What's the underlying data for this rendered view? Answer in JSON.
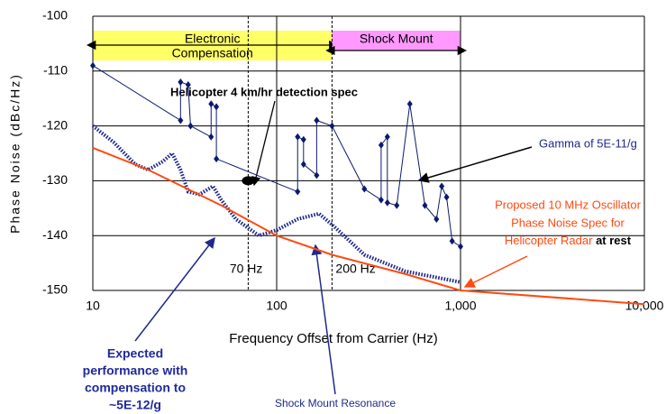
{
  "chart_data": {
    "type": "line",
    "y_axis_label": "Phase Noise (dBc/Hz)",
    "x_axis_label": "Frequency Offset from Carrier (Hz)",
    "log_x": true,
    "grid": true,
    "xlim": [
      10,
      10000
    ],
    "ylim": [
      -150,
      -100
    ],
    "xticks": [
      10,
      100,
      {
        "value": 1000,
        "label": "1,000"
      },
      {
        "value": 10000,
        "label": "10,000"
      }
    ],
    "yticks": [
      -100,
      -110,
      -120,
      -130,
      -140,
      -150
    ],
    "series": [
      {
        "color": "#0b1a6e",
        "marker": "diamond",
        "x": [
          10,
          30,
          30,
          33,
          34,
          44,
          44,
          47,
          47,
          130,
          130,
          140,
          140,
          165,
          165,
          200,
          300,
          370,
          370,
          400,
          400,
          450,
          530,
          640,
          740,
          790,
          840,
          900,
          1000
        ],
        "values": [
          -109,
          -119,
          -112,
          -112.5,
          -120,
          -122,
          -116,
          -116.5,
          -126,
          -132,
          -122,
          -122.5,
          -127,
          -129,
          -119,
          -120,
          -131.5,
          -133.5,
          -123.5,
          -122,
          -134,
          -134.5,
          -116,
          -134.5,
          -137,
          -131,
          -133,
          -141,
          -142
        ]
      },
      {
        "color": "#1f2a8a",
        "dash": "dotted",
        "x": [
          10,
          13,
          17,
          20,
          24,
          27,
          30,
          33,
          38,
          45,
          50,
          60,
          80,
          100,
          130,
          170,
          200,
          300,
          500,
          1000
        ],
        "values": [
          -120,
          -123,
          -127,
          -128,
          -126.5,
          -125,
          -128,
          -132,
          -132.5,
          -131,
          -133.5,
          -137,
          -140,
          -139,
          -137,
          -136,
          -138,
          -143.5,
          -146.5,
          -148.5
        ]
      },
      {
        "color": "#ff4a10",
        "x": [
          10,
          20,
          50,
          100,
          200,
          500,
          1000,
          10000
        ],
        "values": [
          -124,
          -128,
          -134.5,
          -140,
          -143.5,
          -147,
          -150,
          -152.5
        ]
      }
    ],
    "vlines": [
      {
        "value": 70,
        "label": "70 Hz"
      },
      {
        "value": 200,
        "label": "200 Hz"
      }
    ],
    "regions": [
      {
        "from": 10,
        "to": 200,
        "color": "#ffff66",
        "label": [
          "Electronic",
          "Compensation"
        ]
      },
      {
        "from": 200,
        "to": 1000,
        "color": "#ff99ff",
        "label": [
          "Shock Mount"
        ]
      }
    ],
    "point": {
      "x": 70,
      "y": -130,
      "label": "Helicopter 4 km/hr detection spec"
    },
    "annotations": {
      "gamma": "Gamma of 5E-11/g",
      "spec": [
        "Proposed 10 MHz Oscillator",
        "Phase Noise Spec for",
        "Helicopter Radar",
        "at rest"
      ],
      "expected": [
        "Expected",
        "performance with",
        "compensation to",
        "~5E-12/g"
      ],
      "resonance": "Shock Mount Resonance"
    }
  }
}
